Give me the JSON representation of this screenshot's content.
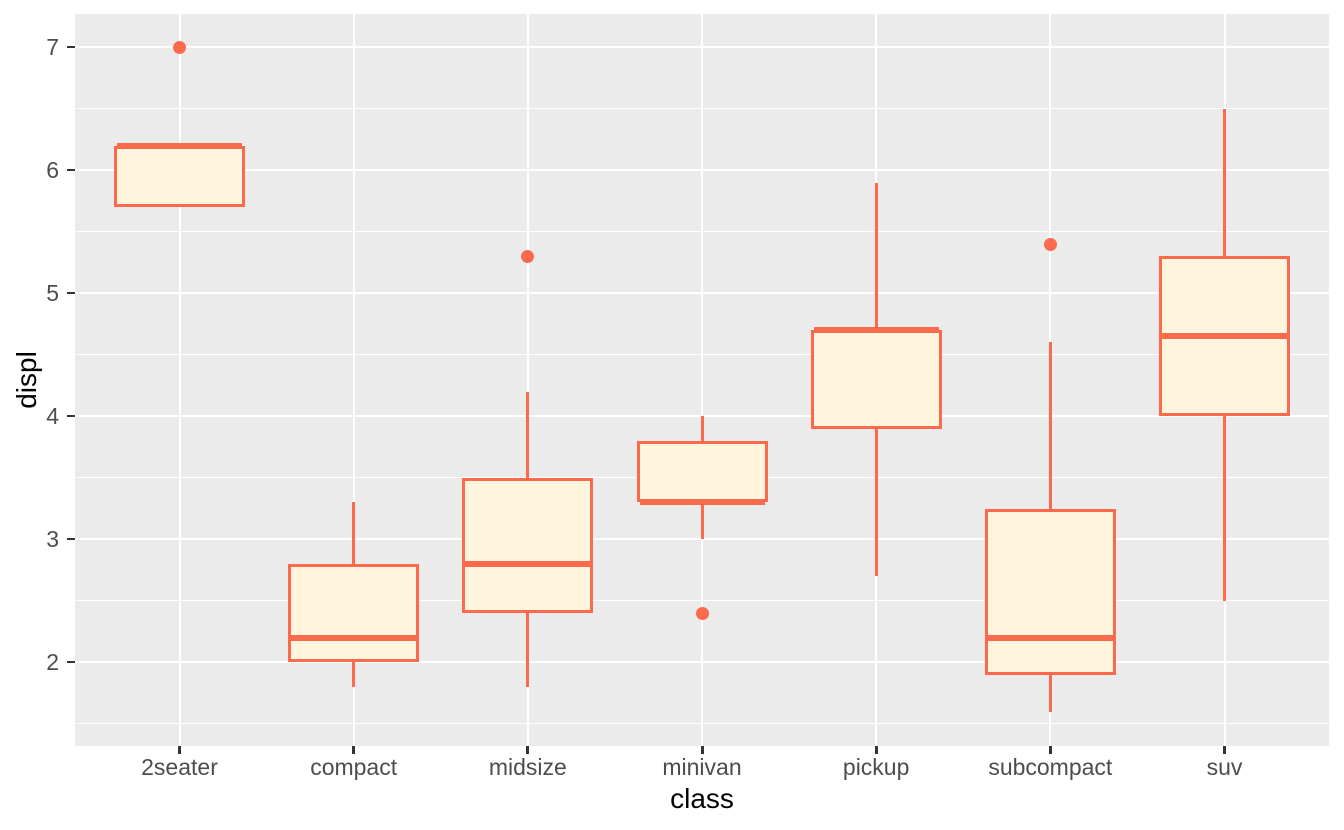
{
  "chart_data": {
    "type": "boxplot",
    "title": "",
    "xlabel": "class",
    "ylabel": "displ",
    "categories": [
      "2seater",
      "compact",
      "midsize",
      "minivan",
      "pickup",
      "subcompact",
      "suv"
    ],
    "series": [
      {
        "category": "2seater",
        "whisker_low": 5.7,
        "q1": 5.7,
        "median": 6.2,
        "q3": 6.2,
        "whisker_high": 6.2,
        "outliers": [
          7.0
        ]
      },
      {
        "category": "compact",
        "whisker_low": 1.8,
        "q1": 2.0,
        "median": 2.2,
        "q3": 2.8,
        "whisker_high": 3.3,
        "outliers": []
      },
      {
        "category": "midsize",
        "whisker_low": 1.8,
        "q1": 2.4,
        "median": 2.8,
        "q3": 3.5,
        "whisker_high": 4.2,
        "outliers": [
          5.3
        ]
      },
      {
        "category": "minivan",
        "whisker_low": 3.0,
        "q1": 3.3,
        "median": 3.3,
        "q3": 3.8,
        "whisker_high": 4.0,
        "outliers": [
          2.4
        ]
      },
      {
        "category": "pickup",
        "whisker_low": 2.7,
        "q1": 3.9,
        "median": 4.7,
        "q3": 4.7,
        "whisker_high": 5.9,
        "outliers": []
      },
      {
        "category": "subcompact",
        "whisker_low": 1.6,
        "q1": 1.9,
        "median": 2.2,
        "q3": 3.25,
        "whisker_high": 4.6,
        "outliers": [
          5.4
        ]
      },
      {
        "category": "suv",
        "whisker_low": 2.5,
        "q1": 4.0,
        "median": 4.65,
        "q3": 5.3,
        "whisker_high": 6.5,
        "outliers": []
      }
    ],
    "y_axis": {
      "ticks": [
        2,
        3,
        4,
        5,
        6,
        7
      ],
      "minor_ticks": [
        1.5,
        2.5,
        3.5,
        4.5,
        5.5,
        6.5
      ],
      "ylim": [
        1.32,
        7.27
      ]
    },
    "x_axis": {
      "ticks": [
        "2seater",
        "compact",
        "midsize",
        "minivan",
        "pickup",
        "subcompact",
        "suv"
      ]
    },
    "legend": "none",
    "grid": "white major+minor horizontal, white major vertical on grey panel",
    "colors": {
      "figure_background": "#FFFFFF",
      "panel_background": "#EBEBEB",
      "gridline": "#FFFFFF",
      "box_stroke": "#FB6A4D",
      "box_fill": "#FFF5DC",
      "outlier": "#FB6A4D",
      "tick_label": "#4D4D4D",
      "axis_title": "#000000",
      "tick_mark": "#333333"
    }
  }
}
